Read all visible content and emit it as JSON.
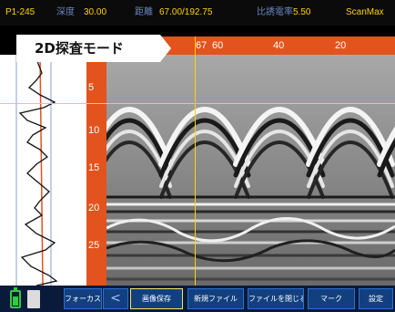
{
  "status_bar": {
    "position_label": "P1-245",
    "depth_label": "深度",
    "depth_value": "30.00",
    "range_label": "距離",
    "range_value": "67.00/192.75",
    "ratio_label": "比誘電率",
    "ratio_value": "5.50",
    "brand": "ScanMax"
  },
  "mode_banner": {
    "label": "2D探査モード"
  },
  "distance_ruler": {
    "ticks": [
      "67",
      "60",
      "40",
      "20"
    ]
  },
  "depth_ruler": {
    "ticks": [
      "5",
      "10",
      "15",
      "20",
      "25"
    ]
  },
  "toolbar": {
    "focus_label": "フォーカス",
    "back_arrow": "<",
    "image_save_label": "画像保存",
    "new_file_label": "新規ファイル",
    "close_file_label": "ファイルを閉じる",
    "mark_label": "マーク",
    "setting_label": "設定"
  },
  "colors": {
    "accent_orange": "#e2531d",
    "crosshair_yellow": "#ffd400",
    "status_text": "#ffd200",
    "toolbar_blue": "#12407f"
  }
}
